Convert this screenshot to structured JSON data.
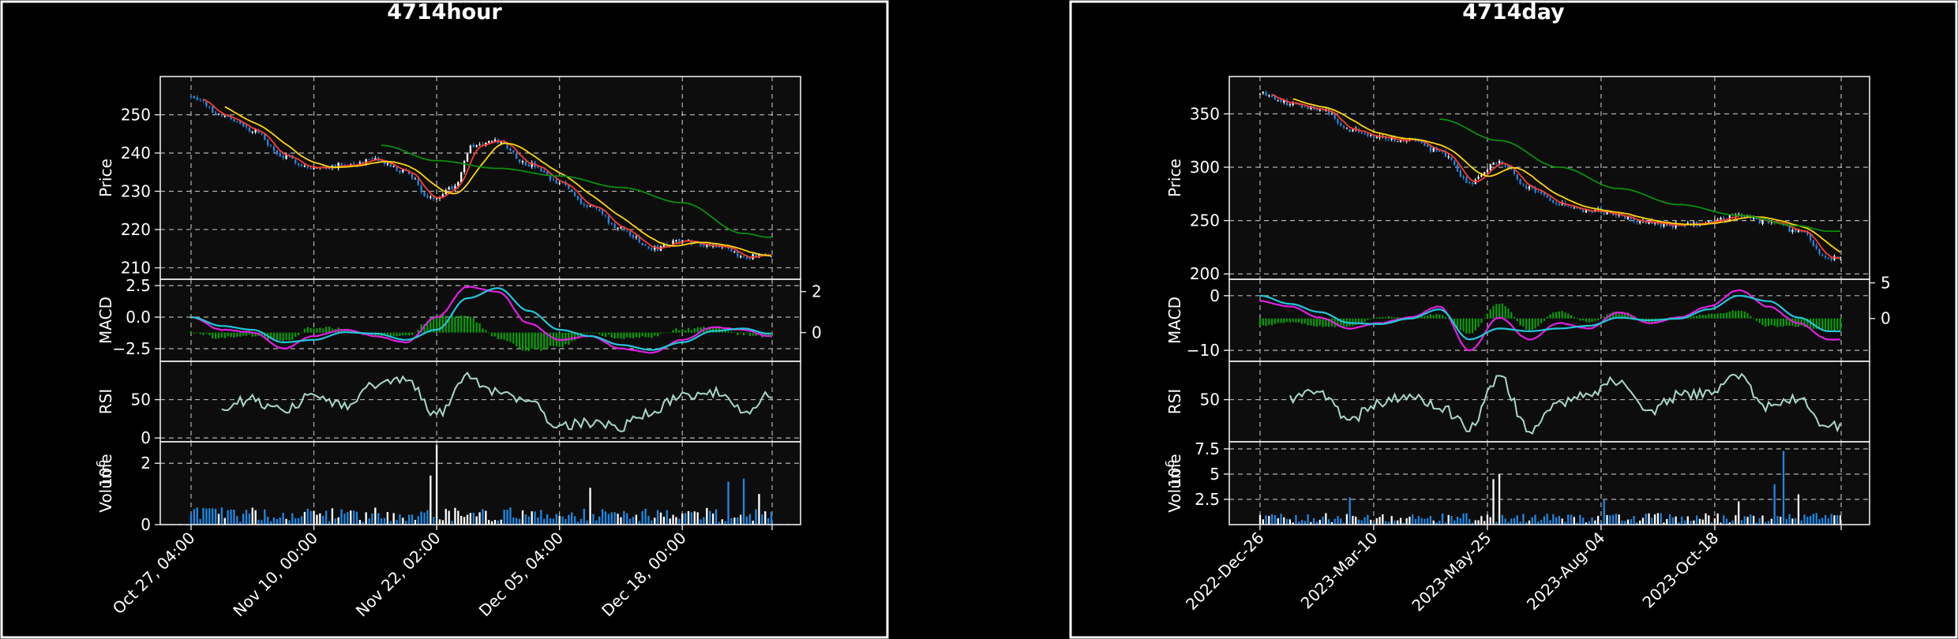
{
  "colors": {
    "background": "#000000",
    "axes_background": "#0d0d0d",
    "candle_up": "#ffffff",
    "candle_down": "#1e88e5",
    "ma_short": "#ff3b30",
    "ma_mid": "#ffd60a",
    "ma_long": "#0a8f0a",
    "macd_line": "#e020e0",
    "signal_line": "#22c7d9",
    "histogram": "#0a9a0a",
    "rsi": "#a8d8cc",
    "volume_up": "#ffffff",
    "volume_down": "#1e88e5"
  },
  "chart_data": [
    {
      "title": "4714hour",
      "type": "candlestick",
      "panels": {
        "price": {
          "ylabel": "Price",
          "ylim": [
            207,
            260
          ],
          "yticks": [
            210,
            220,
            230,
            240,
            250
          ],
          "path_knots": [
            [
              0,
              255
            ],
            [
              10,
              250
            ],
            [
              20,
              246
            ],
            [
              30,
              239
            ],
            [
              40,
              236
            ],
            [
              50,
              237
            ],
            [
              60,
              238
            ],
            [
              70,
              235
            ],
            [
              78,
              228
            ],
            [
              85,
              231
            ],
            [
              92,
              242
            ],
            [
              100,
              243
            ],
            [
              110,
              237
            ],
            [
              120,
              232
            ],
            [
              130,
              226
            ],
            [
              140,
              220
            ],
            [
              150,
              215
            ],
            [
              160,
              217
            ],
            [
              170,
              216
            ],
            [
              180,
              213
            ],
            [
              188,
              213
            ]
          ],
          "ma_long_knots": [
            [
              62,
              242
            ],
            [
              80,
              238
            ],
            [
              100,
              236
            ],
            [
              120,
              234
            ],
            [
              140,
              231
            ],
            [
              160,
              227
            ],
            [
              180,
              219
            ],
            [
              188,
              218
            ]
          ]
        },
        "macd": {
          "ylabel": "MACD",
          "ylim": [
            -3.5,
            3.0
          ],
          "yticks": [
            2.5,
            0.0,
            -2.5
          ],
          "yticklabels": [
            "2.5",
            "0.0",
            "−2.5"
          ],
          "right_ylim": [
            -1.4,
            2.6
          ],
          "right_yticks": [
            2,
            0
          ],
          "right_yticklabels": [
            "2",
            "0"
          ],
          "macd_knots": [
            [
              0,
              0
            ],
            [
              10,
              -1
            ],
            [
              20,
              -1.2
            ],
            [
              30,
              -2.5
            ],
            [
              40,
              -1.5
            ],
            [
              50,
              -1
            ],
            [
              60,
              -1.5
            ],
            [
              70,
              -2
            ],
            [
              80,
              0
            ],
            [
              90,
              2.4
            ],
            [
              100,
              2
            ],
            [
              110,
              -0.5
            ],
            [
              120,
              -1.8
            ],
            [
              130,
              -1.5
            ],
            [
              140,
              -2.5
            ],
            [
              150,
              -2.8
            ],
            [
              160,
              -1.8
            ],
            [
              170,
              -0.8
            ],
            [
              180,
              -1
            ],
            [
              188,
              -1.5
            ]
          ],
          "signal_knots": [
            [
              0,
              0
            ],
            [
              10,
              -0.7
            ],
            [
              20,
              -1
            ],
            [
              30,
              -2
            ],
            [
              40,
              -1.8
            ],
            [
              50,
              -1.2
            ],
            [
              60,
              -1.3
            ],
            [
              70,
              -1.8
            ],
            [
              80,
              -1
            ],
            [
              90,
              1.5
            ],
            [
              100,
              2.3
            ],
            [
              110,
              0.5
            ],
            [
              120,
              -1
            ],
            [
              130,
              -1.5
            ],
            [
              140,
              -2.2
            ],
            [
              150,
              -2.6
            ],
            [
              160,
              -2
            ],
            [
              170,
              -1.1
            ],
            [
              180,
              -0.9
            ],
            [
              188,
              -1.3
            ]
          ]
        },
        "rsi": {
          "ylabel": "RSI",
          "ylim": [
            -5,
            100
          ],
          "yticks": [
            50,
            0
          ],
          "start_index": 10,
          "knots": [
            [
              10,
              42
            ],
            [
              20,
              50
            ],
            [
              30,
              35
            ],
            [
              40,
              55
            ],
            [
              50,
              40
            ],
            [
              60,
              70
            ],
            [
              70,
              75
            ],
            [
              80,
              30
            ],
            [
              90,
              80
            ],
            [
              100,
              60
            ],
            [
              110,
              50
            ],
            [
              120,
              15
            ],
            [
              130,
              20
            ],
            [
              140,
              15
            ],
            [
              150,
              35
            ],
            [
              160,
              55
            ],
            [
              170,
              60
            ],
            [
              180,
              35
            ],
            [
              188,
              55
            ]
          ]
        },
        "volume": {
          "ylabel": "Volume",
          "exponent_label": "10",
          "exponent": "6",
          "ylim": [
            0,
            2.7
          ],
          "yticks": [
            0,
            2
          ],
          "baseline": 0.3,
          "spikes": [
            [
              80,
              2.6
            ],
            [
              78,
              1.6
            ],
            [
              130,
              1.2
            ],
            [
              180,
              1.5
            ],
            [
              175,
              1.4
            ],
            [
              185,
              1.0
            ]
          ]
        }
      },
      "n_bars": 190,
      "seed": 7,
      "xticks": [
        {
          "index": 0,
          "label": "Oct 27, 04:00"
        },
        {
          "index": 40,
          "label": "Nov 10, 00:00"
        },
        {
          "index": 80,
          "label": "Nov 22, 02:00"
        },
        {
          "index": 120,
          "label": "Dec 05, 04:00"
        },
        {
          "index": 160,
          "label": "Dec 18, 00:00"
        }
      ]
    },
    {
      "title": "4714day",
      "type": "candlestick",
      "panels": {
        "price": {
          "ylabel": "Price",
          "ylim": [
            195,
            385
          ],
          "yticks": [
            200,
            250,
            300,
            350
          ],
          "path_knots": [
            [
              0,
              370
            ],
            [
              10,
              360
            ],
            [
              20,
              355
            ],
            [
              30,
              335
            ],
            [
              40,
              328
            ],
            [
              50,
              325
            ],
            [
              60,
              315
            ],
            [
              70,
              285
            ],
            [
              80,
              305
            ],
            [
              90,
              280
            ],
            [
              100,
              265
            ],
            [
              110,
              260
            ],
            [
              120,
              255
            ],
            [
              130,
              248
            ],
            [
              140,
              245
            ],
            [
              150,
              248
            ],
            [
              160,
              255
            ],
            [
              170,
              248
            ],
            [
              180,
              240
            ],
            [
              190,
              215
            ]
          ],
          "ma_long_knots": [
            [
              60,
              345
            ],
            [
              80,
              325
            ],
            [
              100,
              300
            ],
            [
              120,
              280
            ],
            [
              140,
              265
            ],
            [
              160,
              255
            ],
            [
              180,
              245
            ],
            [
              190,
              240
            ]
          ]
        },
        "macd": {
          "ylabel": "MACD",
          "ylim": [
            -12,
            3
          ],
          "yticks": [
            0,
            -10
          ],
          "yticklabels": [
            "0",
            "−10"
          ],
          "right_ylim": [
            -6,
            5.5
          ],
          "right_yticks": [
            5,
            0
          ],
          "right_yticklabels": [
            "5",
            "0"
          ],
          "macd_knots": [
            [
              0,
              -1
            ],
            [
              10,
              -2
            ],
            [
              20,
              -4
            ],
            [
              30,
              -6
            ],
            [
              40,
              -5
            ],
            [
              50,
              -4
            ],
            [
              60,
              -2
            ],
            [
              70,
              -10
            ],
            [
              80,
              -4
            ],
            [
              90,
              -8
            ],
            [
              100,
              -5
            ],
            [
              110,
              -6
            ],
            [
              120,
              -3
            ],
            [
              130,
              -5
            ],
            [
              140,
              -4
            ],
            [
              150,
              -2
            ],
            [
              160,
              1
            ],
            [
              170,
              -2
            ],
            [
              180,
              -5
            ],
            [
              190,
              -8
            ]
          ],
          "signal_knots": [
            [
              0,
              0
            ],
            [
              10,
              -1.5
            ],
            [
              20,
              -3
            ],
            [
              30,
              -5
            ],
            [
              40,
              -5.2
            ],
            [
              50,
              -4.2
            ],
            [
              60,
              -2.5
            ],
            [
              70,
              -8
            ],
            [
              80,
              -6
            ],
            [
              90,
              -6.5
            ],
            [
              100,
              -6
            ],
            [
              110,
              -5.5
            ],
            [
              120,
              -4
            ],
            [
              130,
              -4.5
            ],
            [
              140,
              -4.2
            ],
            [
              150,
              -2.5
            ],
            [
              160,
              0
            ],
            [
              170,
              -1
            ],
            [
              180,
              -4
            ],
            [
              190,
              -6.5
            ]
          ]
        },
        "rsi": {
          "ylabel": "RSI",
          "ylim": [
            -5,
            100
          ],
          "yticks": [
            50
          ],
          "start_index": 10,
          "knots": [
            [
              10,
              50
            ],
            [
              20,
              60
            ],
            [
              30,
              25
            ],
            [
              40,
              45
            ],
            [
              50,
              55
            ],
            [
              60,
              40
            ],
            [
              70,
              15
            ],
            [
              80,
              80
            ],
            [
              90,
              10
            ],
            [
              100,
              45
            ],
            [
              110,
              60
            ],
            [
              120,
              75
            ],
            [
              130,
              35
            ],
            [
              140,
              55
            ],
            [
              150,
              60
            ],
            [
              160,
              80
            ],
            [
              170,
              40
            ],
            [
              180,
              50
            ],
            [
              190,
              15
            ]
          ]
        },
        "volume": {
          "ylabel": "Volume",
          "exponent_label": "10",
          "exponent": "6",
          "ylim": [
            0,
            8.2
          ],
          "yticks": [
            2.5,
            5.0,
            7.5
          ],
          "baseline": 0.6,
          "spikes": [
            [
              78,
              4.5
            ],
            [
              80,
              5.0
            ],
            [
              30,
              2.7
            ],
            [
              115,
              2.5
            ],
            [
              160,
              2.3
            ],
            [
              175,
              7.3
            ],
            [
              172,
              4.0
            ],
            [
              180,
              3.0
            ]
          ]
        }
      },
      "n_bars": 195,
      "seed": 11,
      "xticks": [
        {
          "index": 0,
          "label": "2022-Dec-26"
        },
        {
          "index": 38,
          "label": "2023-Mar-10"
        },
        {
          "index": 76,
          "label": "2023-May-25"
        },
        {
          "index": 114,
          "label": "2023-Aug-04"
        },
        {
          "index": 152,
          "label": "2023-Oct-18"
        }
      ]
    }
  ]
}
